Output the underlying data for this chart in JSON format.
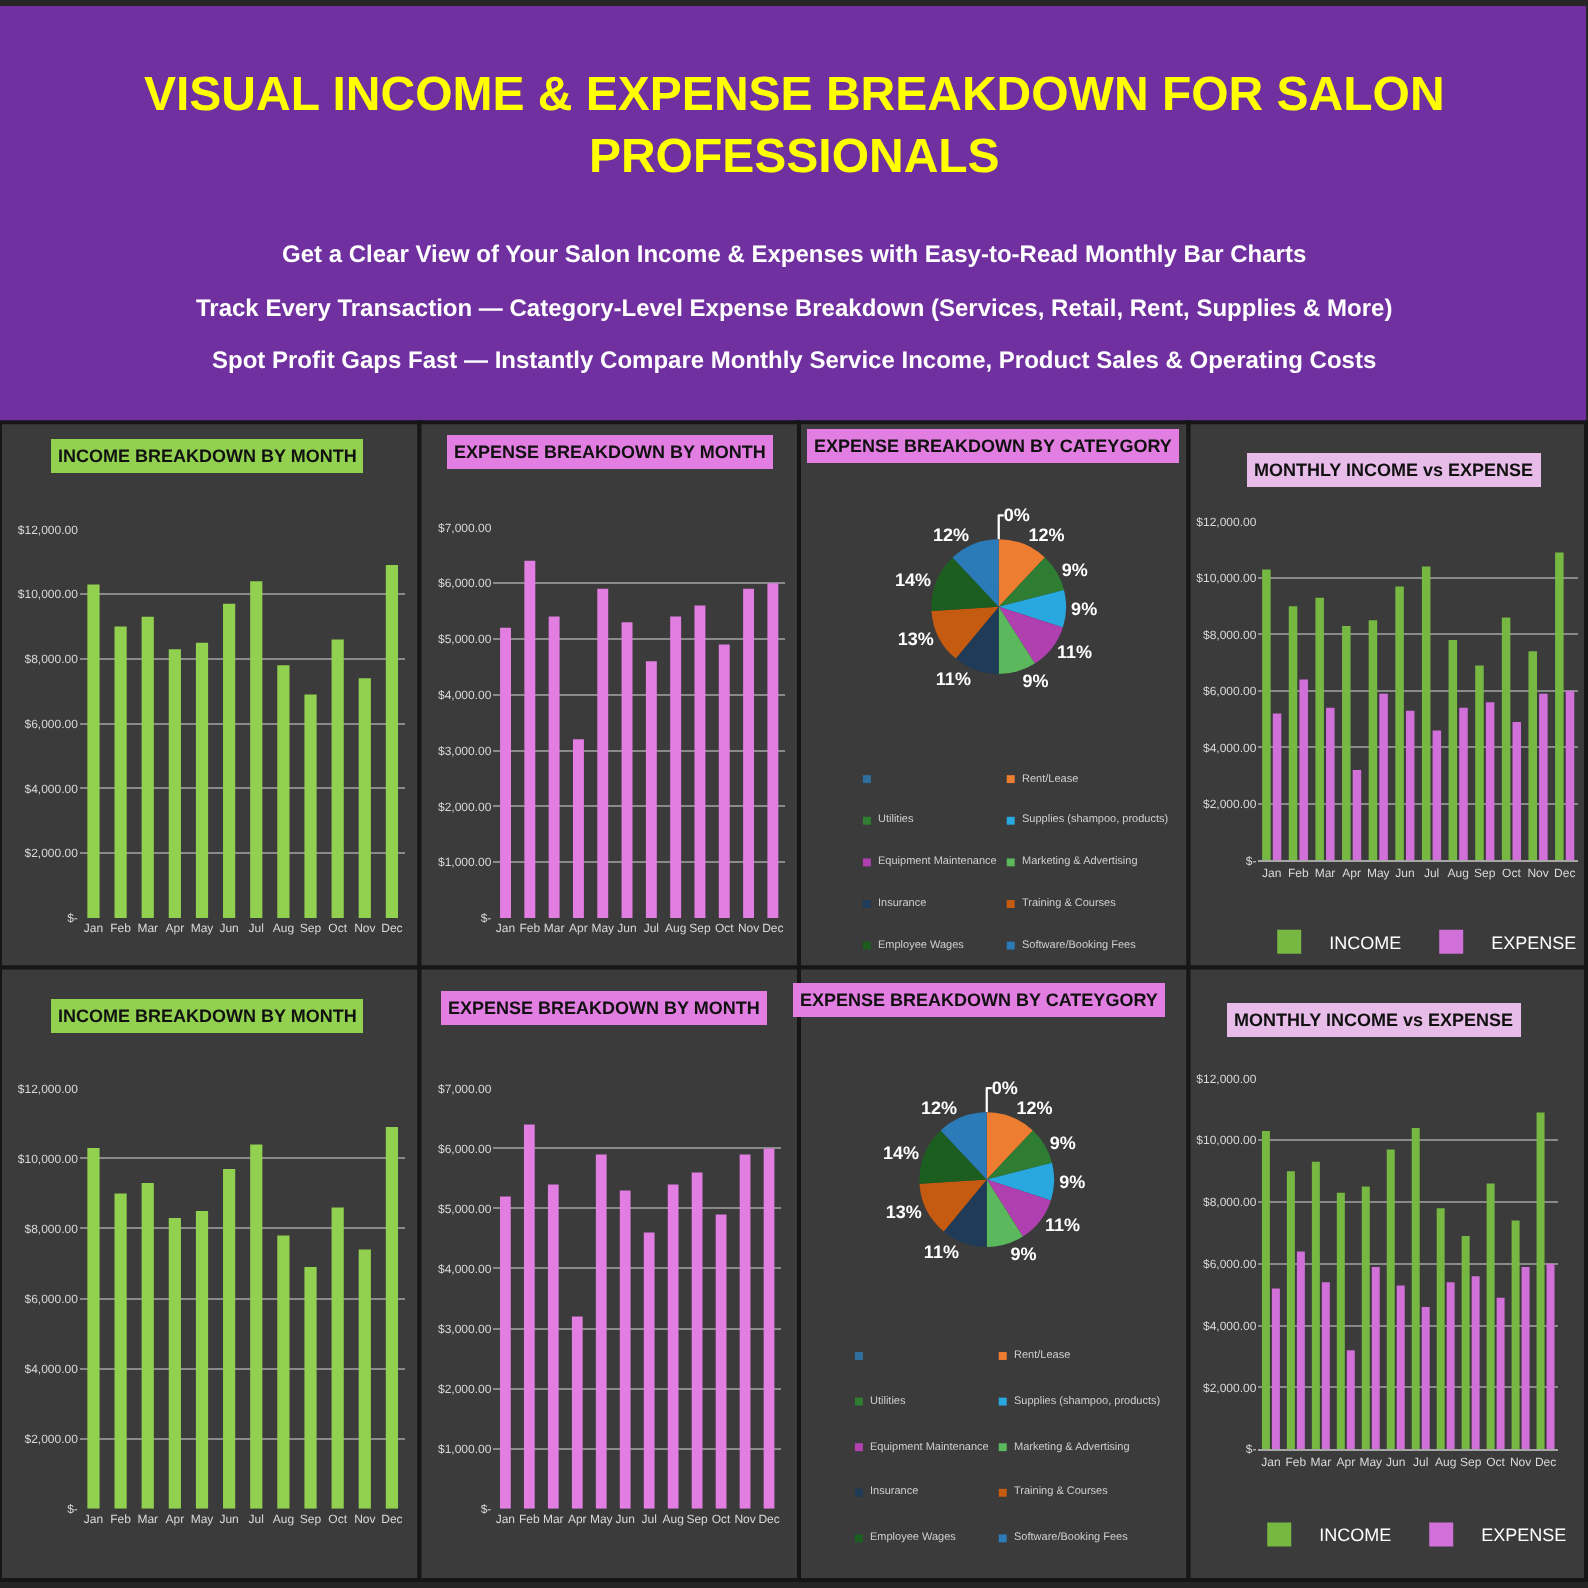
{
  "chart_data": [
    {
      "type": "other",
      "title": "VISUAL INCOME & EXPENSE BREAKDOWN FOR SALON PROFESSIONALS",
      "annotations": [
        "Get a Clear View of Your Salon Income & Expenses with Easy-to-Read Monthly Bar Charts",
        "Track Every Transaction — Category-Level Expense Breakdown (Services, Retail, Rent, Supplies & More)",
        "Spot Profit Gaps Fast — Instantly Compare Monthly Service Income, Product Sales & Operating Costs"
      ]
    },
    {
      "type": "bar",
      "title": "INCOME BREAKDOWN BY MONTH",
      "categories": [
        "Jan",
        "Feb",
        "Mar",
        "Apr",
        "May",
        "Jun",
        "Jul",
        "Aug",
        "Sep",
        "Oct",
        "Nov",
        "Dec"
      ],
      "series": [
        {
          "color": "#92d050",
          "values": [
            10300,
            9000,
            9300,
            8300,
            8500,
            9700,
            10400,
            7800,
            6900,
            8600,
            7400,
            10900
          ]
        }
      ],
      "ylim": [
        0,
        12000
      ],
      "yticks": [
        {
          "value": 0,
          "label": "$-"
        },
        {
          "value": 2000,
          "label": "$2,000.00"
        },
        {
          "value": 4000,
          "label": "$4,000.00"
        },
        {
          "value": 6000,
          "label": "$6,000.00"
        },
        {
          "value": 8000,
          "label": "$8,000.00"
        },
        {
          "value": 10000,
          "label": "$10,000.00"
        },
        {
          "value": 12000,
          "label": "$12,000.00"
        }
      ],
      "grid": "y"
    },
    {
      "type": "bar",
      "title": "EXPENSE BREAKDOWN BY MONTH",
      "categories": [
        "Jan",
        "Feb",
        "Mar",
        "Apr",
        "May",
        "Jun",
        "Jul",
        "Aug",
        "Sep",
        "Oct",
        "Nov",
        "Dec"
      ],
      "series": [
        {
          "color": "#e27de2",
          "values": [
            5200,
            6400,
            5400,
            3200,
            5900,
            5300,
            4600,
            5400,
            5600,
            4900,
            5900,
            6000
          ]
        }
      ],
      "ylim": [
        0,
        7000
      ],
      "yticks": [
        {
          "value": 0,
          "label": "$-"
        },
        {
          "value": 1000,
          "label": "$1,000.00"
        },
        {
          "value": 2000,
          "label": "$2,000.00"
        },
        {
          "value": 3000,
          "label": "$3,000.00"
        },
        {
          "value": 4000,
          "label": "$4,000.00"
        },
        {
          "value": 5000,
          "label": "$5,000.00"
        },
        {
          "value": 6000,
          "label": "$6,000.00"
        },
        {
          "value": 7000,
          "label": "$7,000.00"
        }
      ],
      "grid": "y"
    },
    {
      "type": "pie",
      "title": "EXPENSE BREAKDOWN BY CATEYGORY",
      "categories": [
        null,
        "Rent/Lease",
        "Utilities",
        "Supplies (shampoo, products)",
        "Equipment Maintenance",
        "Marketing & Advertising",
        "Insurance",
        "Training & Courses",
        "Employee Wages",
        "Software/Booking Fees"
      ],
      "values": [
        0,
        12,
        9,
        9,
        11,
        9,
        11,
        13,
        14,
        12
      ],
      "colors": [
        "#2f6f9f",
        "#ed7d31",
        "#2e7d32",
        "#29a8e0",
        "#b040b0",
        "#5cb85c",
        "#1f3b57",
        "#c55a11",
        "#1b5e20",
        "#2b7bb9"
      ],
      "value_labels": [
        "0%",
        "12%",
        "9%",
        "9%",
        "11%",
        "9%",
        "11%",
        "13%",
        "14%",
        "12%"
      ],
      "legend": "bottom"
    },
    {
      "type": "bar",
      "title": "MONTHLY INCOME vs EXPENSE",
      "categories": [
        "Jan",
        "Feb",
        "Mar",
        "Apr",
        "May",
        "Jun",
        "Jul",
        "Aug",
        "Sep",
        "Oct",
        "Nov",
        "Dec"
      ],
      "series": [
        {
          "name": "INCOME",
          "color": "#77b843",
          "values": [
            10300,
            9000,
            9300,
            8300,
            8500,
            9700,
            10400,
            7800,
            6900,
            8600,
            7400,
            10900
          ]
        },
        {
          "name": "EXPENSE",
          "color": "#d070d8",
          "values": [
            5200,
            6400,
            5400,
            3200,
            5900,
            5300,
            4600,
            5400,
            5600,
            4900,
            5900,
            6000
          ]
        }
      ],
      "ylim": [
        0,
        12000
      ],
      "yticks": [
        {
          "value": 0,
          "label": "$-"
        },
        {
          "value": 2000,
          "label": "$2,000.00"
        },
        {
          "value": 4000,
          "label": "$4,000.00"
        },
        {
          "value": 6000,
          "label": "$6,000.00"
        },
        {
          "value": 8000,
          "label": "$8,000.00"
        },
        {
          "value": 10000,
          "label": "$10,000.00"
        },
        {
          "value": 12000,
          "label": "$12,000.00"
        }
      ],
      "grid": "y",
      "legend": "bottom"
    },
    {
      "type": "bar",
      "title": "INCOME BREAKDOWN BY MONTH",
      "categories": [
        "Jan",
        "Feb",
        "Mar",
        "Apr",
        "May",
        "Jun",
        "Jul",
        "Aug",
        "Sep",
        "Oct",
        "Nov",
        "Dec"
      ],
      "series": [
        {
          "color": "#92d050",
          "values": [
            10300,
            9000,
            9300,
            8300,
            8500,
            9700,
            10400,
            7800,
            6900,
            8600,
            7400,
            10900
          ]
        }
      ],
      "ylim": [
        0,
        12000
      ],
      "yticks": [
        {
          "value": 0,
          "label": "$-"
        },
        {
          "value": 2000,
          "label": "$2,000.00"
        },
        {
          "value": 4000,
          "label": "$4,000.00"
        },
        {
          "value": 6000,
          "label": "$6,000.00"
        },
        {
          "value": 8000,
          "label": "$8,000.00"
        },
        {
          "value": 10000,
          "label": "$10,000.00"
        },
        {
          "value": 12000,
          "label": "$12,000.00"
        }
      ],
      "grid": "y"
    },
    {
      "type": "bar",
      "title": "EXPENSE BREAKDOWN BY MONTH",
      "categories": [
        "Jan",
        "Feb",
        "Mar",
        "Apr",
        "May",
        "Jun",
        "Jul",
        "Aug",
        "Sep",
        "Oct",
        "Nov",
        "Dec"
      ],
      "series": [
        {
          "color": "#e27de2",
          "values": [
            5200,
            6400,
            5400,
            3200,
            5900,
            5300,
            4600,
            5400,
            5600,
            4900,
            5900,
            6000
          ]
        }
      ],
      "ylim": [
        0,
        7000
      ],
      "yticks": [
        {
          "value": 0,
          "label": "$-"
        },
        {
          "value": 1000,
          "label": "$1,000.00"
        },
        {
          "value": 2000,
          "label": "$2,000.00"
        },
        {
          "value": 3000,
          "label": "$3,000.00"
        },
        {
          "value": 4000,
          "label": "$4,000.00"
        },
        {
          "value": 5000,
          "label": "$5,000.00"
        },
        {
          "value": 6000,
          "label": "$6,000.00"
        },
        {
          "value": 7000,
          "label": "$7,000.00"
        }
      ],
      "grid": "y"
    },
    {
      "type": "pie",
      "title": "EXPENSE BREAKDOWN BY CATEYGORY",
      "categories": [
        null,
        "Rent/Lease",
        "Utilities",
        "Supplies (shampoo, products)",
        "Equipment Maintenance",
        "Marketing & Advertising",
        "Insurance",
        "Training & Courses",
        "Employee Wages",
        "Software/Booking Fees"
      ],
      "values": [
        0,
        12,
        9,
        9,
        11,
        9,
        11,
        13,
        14,
        12
      ],
      "colors": [
        "#2f6f9f",
        "#ed7d31",
        "#2e7d32",
        "#29a8e0",
        "#b040b0",
        "#5cb85c",
        "#1f3b57",
        "#c55a11",
        "#1b5e20",
        "#2b7bb9"
      ],
      "value_labels": [
        "0%",
        "12%",
        "9%",
        "9%",
        "11%",
        "9%",
        "11%",
        "13%",
        "14%",
        "12%"
      ],
      "legend": "bottom"
    },
    {
      "type": "bar",
      "title": "MONTHLY INCOME vs EXPENSE",
      "categories": [
        "Jan",
        "Feb",
        "Mar",
        "Apr",
        "May",
        "Jun",
        "Jul",
        "Aug",
        "Sep",
        "Oct",
        "Nov",
        "Dec"
      ],
      "series": [
        {
          "name": "INCOME",
          "color": "#77b843",
          "values": [
            10300,
            9000,
            9300,
            8300,
            8500,
            9700,
            10400,
            7800,
            6900,
            8600,
            7400,
            10900
          ]
        },
        {
          "name": "EXPENSE",
          "color": "#d070d8",
          "values": [
            5200,
            6400,
            5400,
            3200,
            5900,
            5300,
            4600,
            5400,
            5600,
            4900,
            5900,
            6000
          ]
        }
      ],
      "ylim": [
        0,
        12000
      ],
      "yticks": [
        {
          "value": 0,
          "label": "$-"
        },
        {
          "value": 2000,
          "label": "$2,000.00"
        },
        {
          "value": 4000,
          "label": "$4,000.00"
        },
        {
          "value": 6000,
          "label": "$6,000.00"
        },
        {
          "value": 8000,
          "label": "$8,000.00"
        },
        {
          "value": 10000,
          "label": "$10,000.00"
        },
        {
          "value": 12000,
          "label": "$12,000.00"
        }
      ],
      "grid": "y",
      "legend": "bottom"
    }
  ]
}
